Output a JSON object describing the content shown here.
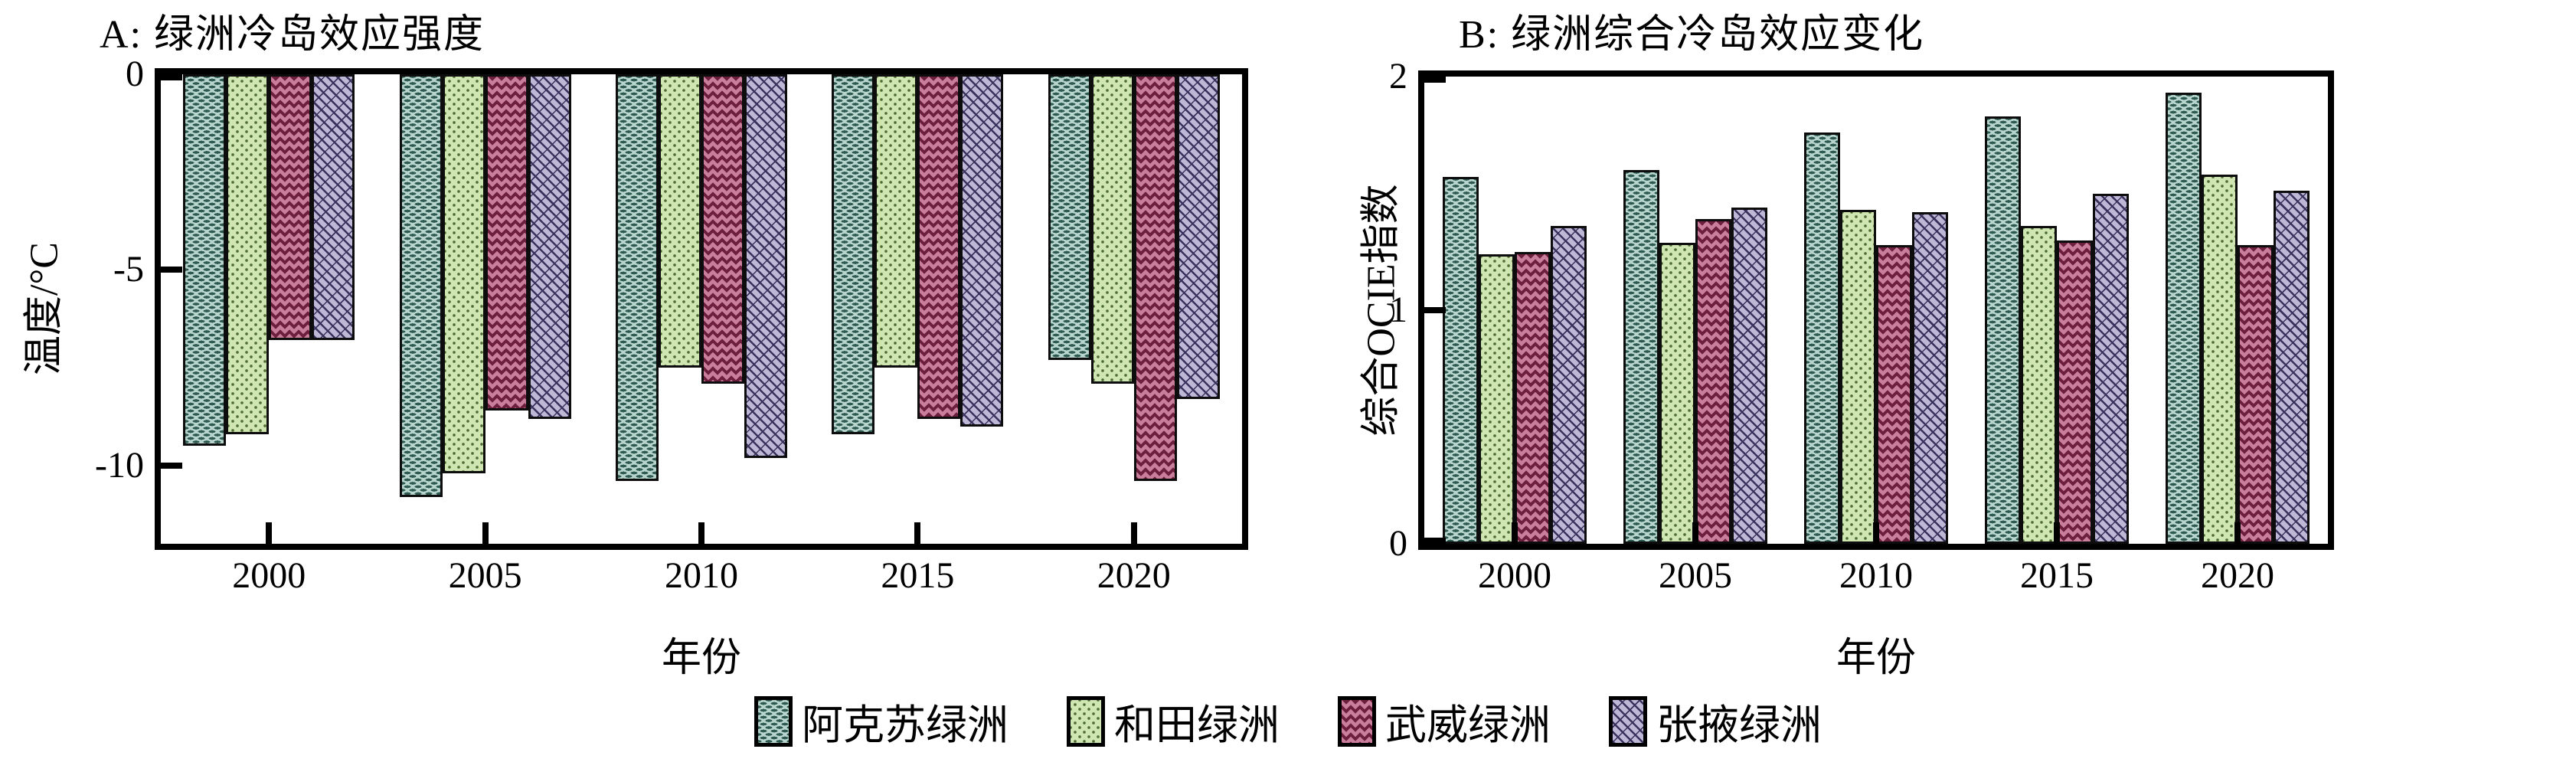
{
  "page": {
    "background": "#ffffff"
  },
  "legend": {
    "items": [
      {
        "label": "阿克苏绿洲",
        "series": "aksu"
      },
      {
        "label": "和田绿洲",
        "series": "hotan"
      },
      {
        "label": "武威绿洲",
        "series": "wuwei"
      },
      {
        "label": "张掖绿洲",
        "series": "zhangye"
      }
    ]
  },
  "series_colors": {
    "aksu": {
      "base": "#b7d5cd",
      "pattern": "#2f5a52",
      "pattern_style": "horizontal-dashes"
    },
    "hotan": {
      "base": "#cfe6b3",
      "pattern": "#4e6b33",
      "pattern_style": "dots"
    },
    "wuwei": {
      "base": "#c97f9b",
      "pattern": "#6e1f3d",
      "pattern_style": "zigzag"
    },
    "zhangye": {
      "base": "#bfb7d6",
      "pattern": "#38325c",
      "pattern_style": "diagonal-lattice"
    }
  },
  "chart_data": [
    {
      "id": "A",
      "type": "bar",
      "title": "A: 绿洲冷岛效应强度",
      "xlabel": "年份",
      "ylabel": "温度/°C",
      "categories": [
        "2000",
        "2005",
        "2010",
        "2015",
        "2020"
      ],
      "series": [
        {
          "name": "阿克苏绿洲",
          "key": "aksu",
          "values": [
            -9.5,
            -10.8,
            -10.4,
            -9.2,
            -7.3
          ]
        },
        {
          "name": "和田绿洲",
          "key": "hotan",
          "values": [
            -9.2,
            -10.2,
            -7.5,
            -7.5,
            -7.9
          ]
        },
        {
          "name": "武威绿洲",
          "key": "wuwei",
          "values": [
            -6.8,
            -8.6,
            -7.9,
            -8.8,
            -10.4
          ]
        },
        {
          "name": "张掖绿洲",
          "key": "zhangye",
          "values": [
            -6.8,
            -8.8,
            -9.8,
            -9.0,
            -8.3
          ]
        }
      ],
      "ylim": [
        -12,
        0
      ],
      "yticks": [
        0,
        -5,
        -10
      ],
      "bars_hang_from_top": true,
      "grid": false,
      "legend_position": "shared-bottom"
    },
    {
      "id": "B",
      "type": "bar",
      "title": "B: 绿洲综合冷岛效应变化",
      "xlabel": "年份",
      "ylabel": "综合OCIE指数",
      "categories": [
        "2000",
        "2005",
        "2010",
        "2015",
        "2020"
      ],
      "series": [
        {
          "name": "阿克苏绿洲",
          "key": "aksu",
          "values": [
            1.57,
            1.6,
            1.76,
            1.83,
            1.93
          ]
        },
        {
          "name": "和田绿洲",
          "key": "hotan",
          "values": [
            1.24,
            1.29,
            1.43,
            1.36,
            1.58
          ]
        },
        {
          "name": "武威绿洲",
          "key": "wuwei",
          "values": [
            1.25,
            1.39,
            1.28,
            1.3,
            1.28
          ]
        },
        {
          "name": "张掖绿洲",
          "key": "zhangye",
          "values": [
            1.36,
            1.44,
            1.42,
            1.5,
            1.51
          ]
        }
      ],
      "ylim": [
        0,
        2
      ],
      "yticks": [
        0,
        1,
        2
      ],
      "bars_hang_from_top": false,
      "grid": false,
      "legend_position": "shared-bottom"
    }
  ]
}
